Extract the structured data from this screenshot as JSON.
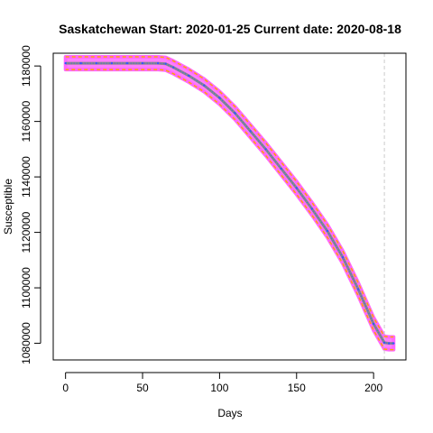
{
  "chart_data": {
    "type": "line",
    "title": "Saskatchewan Start:  2020-01-25   Current date:  2020-08-18",
    "xlabel": "Days",
    "ylabel": "Susceptible",
    "xlim": [
      -8,
      221
    ],
    "ylim": [
      1074000,
      1184600
    ],
    "x_ticks": [
      0,
      50,
      100,
      150,
      200
    ],
    "x_tick_labels": [
      "0",
      "50",
      "100",
      "150",
      "200"
    ],
    "y_ticks": [
      1080000,
      1100000,
      1120000,
      1140000,
      1160000,
      1180000
    ],
    "y_tick_labels": [
      "1080000",
      "1100000",
      "1120000",
      "1140000",
      "1160000",
      "1180000"
    ],
    "current_day_marker": 207,
    "band_halfwidth": 2300,
    "grid": false,
    "colors": {
      "band": "#ff66ff",
      "band_edge": "#ffa500",
      "median": "#8a8a8a",
      "median_dots": "#3355ff",
      "marker": "#cccccc"
    },
    "series": [
      {
        "x": [
          0,
          10,
          20,
          30,
          40,
          50,
          60,
          65,
          70,
          80,
          90,
          100,
          110,
          120,
          130,
          140,
          150,
          160,
          170,
          180,
          190,
          200,
          207,
          210,
          213
        ],
        "values": [
          1181000,
          1181000,
          1181000,
          1181000,
          1181000,
          1181000,
          1181000,
          1180800,
          1179500,
          1176500,
          1173000,
          1168500,
          1163000,
          1156500,
          1150000,
          1143000,
          1136000,
          1128500,
          1120500,
          1111000,
          1099500,
          1087000,
          1080200,
          1080000,
          1080000
        ]
      }
    ]
  }
}
